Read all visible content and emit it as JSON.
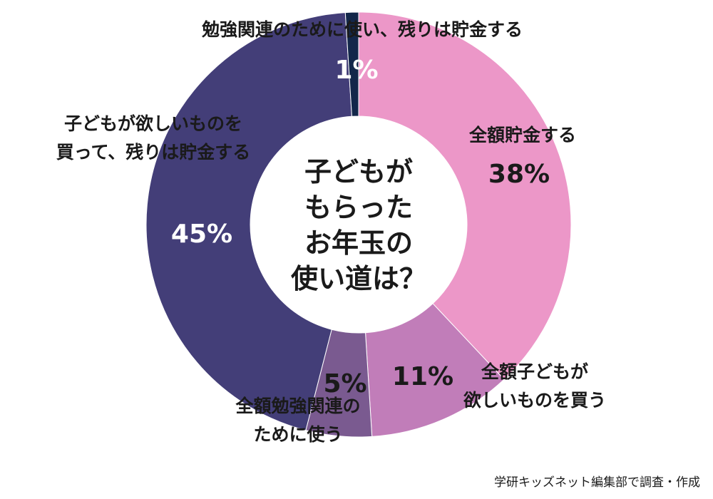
{
  "chart_data": {
    "type": "pie",
    "center_title": [
      "子どもが",
      "もらった",
      "お年玉の",
      "使い道は？"
    ],
    "slices": [
      {
        "label": [
          "全額貯金する"
        ],
        "value": 38,
        "value_label": "38%",
        "color": "#ec97c8"
      },
      {
        "label": [
          "全額子どもが",
          "欲しいものを買う"
        ],
        "value": 11,
        "value_label": "11%",
        "color": "#c17db9"
      },
      {
        "label": [
          "全額勉強関連の",
          "ために使う"
        ],
        "value": 5,
        "value_label": "5%",
        "color": "#7a5a90"
      },
      {
        "label": [
          "子どもが欲しいものを",
          "買って、残りは貯金する"
        ],
        "value": 45,
        "value_label": "45%",
        "color": "#433e78"
      },
      {
        "label": [
          "勉強関連のために使い、残りは貯金する"
        ],
        "value": 1,
        "value_label": "1%",
        "color": "#13274a"
      }
    ]
  },
  "source": "学研キッズネット編集部で調査・作成"
}
